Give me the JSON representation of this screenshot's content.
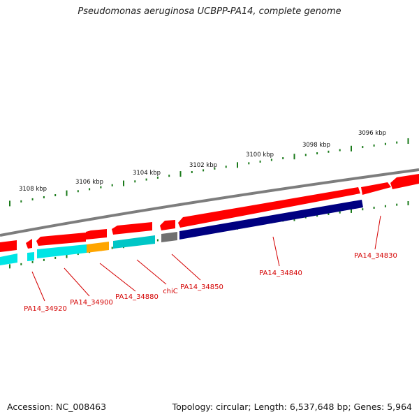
{
  "title": "Pseudomonas aeruginosa UCBPP-PA14, complete genome",
  "footer": {
    "accession": "Accession: NC_008463",
    "summary": "Topology: circular; Length: 6,537,648 bp; Genes: 5,964"
  },
  "ruler_labels": [
    "3108 kbp",
    "3106 kbp",
    "3104 kbp",
    "3102 kbp",
    "3100 kbp",
    "3098 kbp",
    "3096 kbp"
  ],
  "gene_labels": [
    "PA14_34920",
    "PA14_34900",
    "PA14_34880",
    "chiC",
    "PA14_34850",
    "PA14_34840",
    "PA14_34830"
  ],
  "colors": {
    "backbone": "#808080",
    "forward_gene": "#ff0000",
    "reverse_gene": "#00e5e5",
    "highlight_gene": "#ffa500",
    "teal_gene": "#00a0a0",
    "gray_gene": "#707070",
    "navy_gene": "#000080",
    "tick": "#1a7a1a",
    "label": "#d40000"
  }
}
